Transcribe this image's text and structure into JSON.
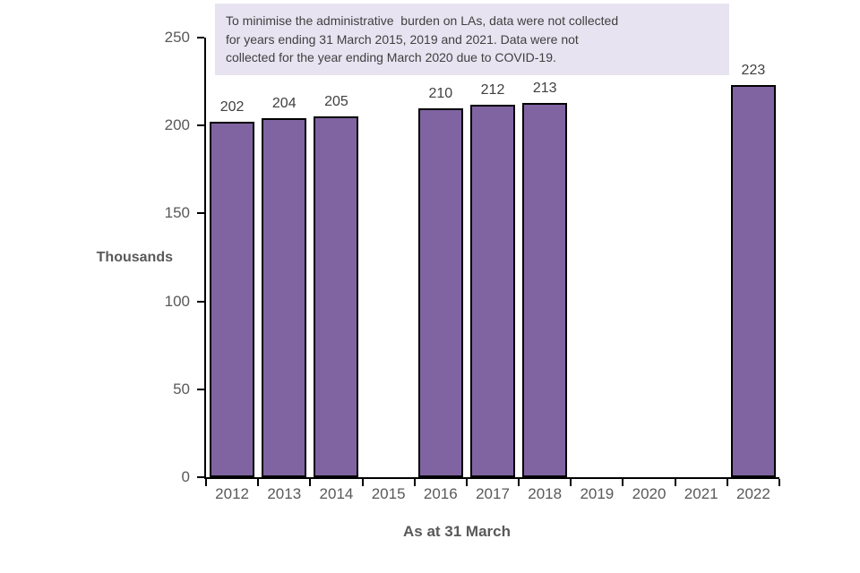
{
  "note": {
    "background": "#E8E3F1",
    "text_color": "#3f3f3f",
    "lines": [
      "To minimise the administrative  burden on LAs, data were not collected",
      "for years ending 31 March 2015, 2019 and 2021. Data were not",
      "collected for the year ending March 2020 due to COVID-19."
    ]
  },
  "chart_data": {
    "type": "bar",
    "categories": [
      "2012",
      "2013",
      "2014",
      "2015",
      "2016",
      "2017",
      "2018",
      "2019",
      "2020",
      "2021",
      "2022"
    ],
    "values": [
      202,
      204,
      205,
      null,
      210,
      212,
      213,
      null,
      null,
      null,
      223
    ],
    "title": "",
    "xlabel": "As at 31 March",
    "ylabel": "Thousands",
    "ylim": [
      0,
      250
    ],
    "yticks": [
      0,
      50,
      100,
      150,
      200,
      250
    ],
    "grid": false,
    "legend": "none",
    "data_labels": true,
    "bar_color": "#8064A2",
    "bar_border_color": "#000000",
    "axis_color": "#000000",
    "tick_label_color": "#595959",
    "data_label_color": "#404040"
  }
}
